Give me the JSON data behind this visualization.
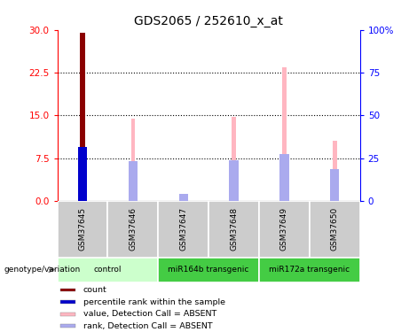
{
  "title": "GDS2065 / 252610_x_at",
  "samples": [
    "GSM37645",
    "GSM37646",
    "GSM37647",
    "GSM37648",
    "GSM37649",
    "GSM37650"
  ],
  "value_bars": [
    0,
    14.5,
    1.0,
    14.7,
    23.5,
    10.5
  ],
  "rank_bars": [
    0,
    6.9,
    1.2,
    7.2,
    8.2,
    5.5
  ],
  "count_bar": [
    29.5,
    0,
    0,
    0,
    0,
    0
  ],
  "percentile_rank": [
    9.5,
    0,
    0,
    0,
    0,
    0
  ],
  "count_color": "#8B0000",
  "percentile_rank_color": "#0000CC",
  "value_color": "#FFB6C1",
  "rank_color": "#AAAAEE",
  "ylim_left": [
    0,
    30
  ],
  "ylim_right": [
    0,
    100
  ],
  "yticks_left": [
    0,
    7.5,
    15,
    22.5,
    30
  ],
  "ytick_labels_right": [
    "0",
    "25",
    "50",
    "75",
    "100%"
  ],
  "title_fontsize": 10,
  "legend_items": [
    {
      "label": "count",
      "color": "#8B0000"
    },
    {
      "label": "percentile rank within the sample",
      "color": "#0000CC"
    },
    {
      "label": "value, Detection Call = ABSENT",
      "color": "#FFB6C1"
    },
    {
      "label": "rank, Detection Call = ABSENT",
      "color": "#AAAAEE"
    }
  ],
  "group_positions": [
    [
      0,
      1,
      "control",
      "#CCFFCC"
    ],
    [
      2,
      3,
      "miR164b transgenic",
      "#44CC44"
    ],
    [
      4,
      5,
      "miR172a transgenic",
      "#44CC44"
    ]
  ],
  "sample_bg_color": "#CCCCCC"
}
